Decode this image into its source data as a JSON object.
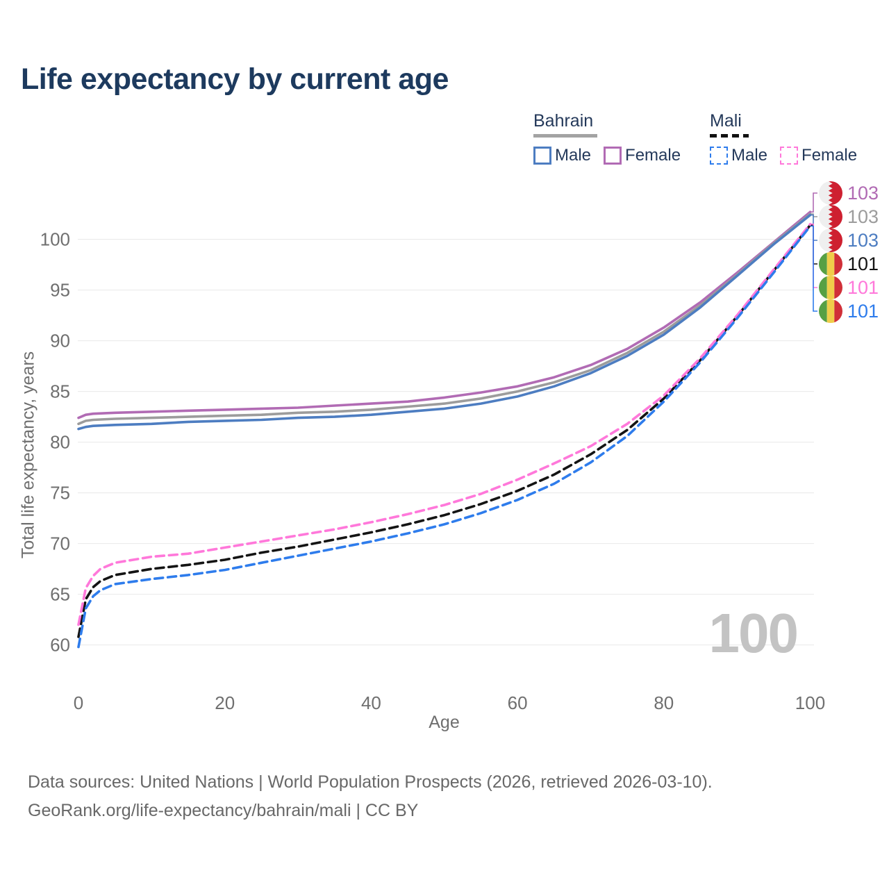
{
  "title": "Life expectancy by current age",
  "watermark_age": "100",
  "legend": {
    "groups": [
      {
        "country": "Bahrain",
        "line_style": "solid",
        "rule_color": "#a3a3a3",
        "items": [
          {
            "label": "Male",
            "color": "#4d7dc1"
          },
          {
            "label": "Female",
            "color": "#b16bb4"
          }
        ]
      },
      {
        "country": "Mali",
        "line_style": "dashed",
        "rule_color": "#111111",
        "items": [
          {
            "label": "Male",
            "color": "#2e7cec"
          },
          {
            "label": "Female",
            "color": "#ff78da"
          }
        ]
      }
    ]
  },
  "footer": {
    "line1": "Data sources: United Nations | World Population Prospects (2026, retrieved 2026-03-10).",
    "line2": "GeoRank.org/life-expectancy/bahrain/mali | CC BY"
  },
  "chart_data": {
    "type": "line",
    "title": "Life expectancy by current age",
    "xlabel": "Age",
    "ylabel": "Total life expectancy, years",
    "xlim": [
      0,
      100
    ],
    "ylim": [
      58,
      104
    ],
    "xticks": [
      0,
      20,
      40,
      60,
      80,
      100
    ],
    "yticks": [
      60,
      65,
      70,
      75,
      80,
      85,
      90,
      95,
      100
    ],
    "grid": "horizontal",
    "grid_color": "#e8e8e8",
    "tick_color": "#6f6f6f",
    "series": [
      {
        "name": "Bahrain Female",
        "country": "Bahrain",
        "sex": "Female",
        "flag": "bahrain",
        "color": "#b16bb4",
        "dashed": false,
        "end_label": "103",
        "points": [
          [
            0,
            82.4
          ],
          [
            1,
            82.7
          ],
          [
            2,
            82.8
          ],
          [
            5,
            82.9
          ],
          [
            10,
            83.0
          ],
          [
            15,
            83.1
          ],
          [
            20,
            83.2
          ],
          [
            25,
            83.3
          ],
          [
            30,
            83.4
          ],
          [
            35,
            83.6
          ],
          [
            40,
            83.8
          ],
          [
            45,
            84.0
          ],
          [
            50,
            84.4
          ],
          [
            55,
            84.9
          ],
          [
            60,
            85.5
          ],
          [
            65,
            86.4
          ],
          [
            70,
            87.6
          ],
          [
            75,
            89.2
          ],
          [
            80,
            91.3
          ],
          [
            85,
            93.8
          ],
          [
            90,
            96.7
          ],
          [
            95,
            99.7
          ],
          [
            100,
            102.7
          ]
        ]
      },
      {
        "name": "Bahrain Both sexes",
        "country": "Bahrain",
        "sex": "Both",
        "flag": "bahrain",
        "color": "#9c9c9c",
        "dashed": false,
        "end_label": "103",
        "points": [
          [
            0,
            81.8
          ],
          [
            1,
            82.1
          ],
          [
            2,
            82.2
          ],
          [
            5,
            82.3
          ],
          [
            10,
            82.4
          ],
          [
            15,
            82.5
          ],
          [
            20,
            82.6
          ],
          [
            25,
            82.7
          ],
          [
            30,
            82.9
          ],
          [
            35,
            83.0
          ],
          [
            40,
            83.2
          ],
          [
            45,
            83.5
          ],
          [
            50,
            83.8
          ],
          [
            55,
            84.3
          ],
          [
            60,
            85.0
          ],
          [
            65,
            85.9
          ],
          [
            70,
            87.1
          ],
          [
            75,
            88.8
          ],
          [
            80,
            90.9
          ],
          [
            85,
            93.5
          ],
          [
            90,
            96.5
          ],
          [
            95,
            99.6
          ],
          [
            100,
            102.5
          ]
        ]
      },
      {
        "name": "Bahrain Male",
        "country": "Bahrain",
        "sex": "Male",
        "flag": "bahrain",
        "color": "#4d7dc1",
        "dashed": false,
        "end_label": "103",
        "points": [
          [
            0,
            81.3
          ],
          [
            1,
            81.5
          ],
          [
            2,
            81.6
          ],
          [
            5,
            81.7
          ],
          [
            10,
            81.8
          ],
          [
            15,
            82.0
          ],
          [
            20,
            82.1
          ],
          [
            25,
            82.2
          ],
          [
            30,
            82.4
          ],
          [
            35,
            82.5
          ],
          [
            40,
            82.7
          ],
          [
            45,
            83.0
          ],
          [
            50,
            83.3
          ],
          [
            55,
            83.8
          ],
          [
            60,
            84.5
          ],
          [
            65,
            85.5
          ],
          [
            70,
            86.8
          ],
          [
            75,
            88.5
          ],
          [
            80,
            90.6
          ],
          [
            85,
            93.3
          ],
          [
            90,
            96.4
          ],
          [
            95,
            99.5
          ],
          [
            100,
            102.4
          ]
        ]
      },
      {
        "name": "Mali Both sexes",
        "country": "Mali",
        "sex": "Both",
        "flag": "mali",
        "color": "#141414",
        "dashed": true,
        "end_label": "101",
        "points": [
          [
            0,
            60.8
          ],
          [
            1,
            64.5
          ],
          [
            2,
            65.7
          ],
          [
            3,
            66.3
          ],
          [
            5,
            66.9
          ],
          [
            10,
            67.5
          ],
          [
            15,
            67.9
          ],
          [
            20,
            68.4
          ],
          [
            25,
            69.1
          ],
          [
            30,
            69.7
          ],
          [
            35,
            70.4
          ],
          [
            40,
            71.1
          ],
          [
            45,
            71.9
          ],
          [
            50,
            72.8
          ],
          [
            55,
            73.9
          ],
          [
            60,
            75.2
          ],
          [
            65,
            76.8
          ],
          [
            70,
            78.8
          ],
          [
            75,
            81.2
          ],
          [
            80,
            84.3
          ],
          [
            85,
            88.1
          ],
          [
            90,
            92.4
          ],
          [
            95,
            96.9
          ],
          [
            100,
            101.4
          ]
        ]
      },
      {
        "name": "Mali Female",
        "country": "Mali",
        "sex": "Female",
        "flag": "mali",
        "color": "#ff78da",
        "dashed": true,
        "end_label": "101",
        "points": [
          [
            0,
            62.0
          ],
          [
            1,
            65.6
          ],
          [
            2,
            66.8
          ],
          [
            3,
            67.5
          ],
          [
            5,
            68.1
          ],
          [
            10,
            68.7
          ],
          [
            15,
            69.0
          ],
          [
            20,
            69.6
          ],
          [
            25,
            70.2
          ],
          [
            30,
            70.8
          ],
          [
            35,
            71.4
          ],
          [
            40,
            72.1
          ],
          [
            45,
            72.9
          ],
          [
            50,
            73.8
          ],
          [
            55,
            74.9
          ],
          [
            60,
            76.3
          ],
          [
            65,
            77.9
          ],
          [
            70,
            79.6
          ],
          [
            75,
            81.8
          ],
          [
            80,
            84.6
          ],
          [
            85,
            88.3
          ],
          [
            90,
            92.5
          ],
          [
            95,
            97.0
          ],
          [
            100,
            101.5
          ]
        ]
      },
      {
        "name": "Mali Male",
        "country": "Mali",
        "sex": "Male",
        "flag": "mali",
        "color": "#2e7cec",
        "dashed": true,
        "end_label": "101",
        "points": [
          [
            0,
            59.8
          ],
          [
            1,
            63.6
          ],
          [
            2,
            64.8
          ],
          [
            3,
            65.4
          ],
          [
            5,
            66.0
          ],
          [
            10,
            66.5
          ],
          [
            15,
            66.9
          ],
          [
            20,
            67.4
          ],
          [
            25,
            68.1
          ],
          [
            30,
            68.8
          ],
          [
            35,
            69.5
          ],
          [
            40,
            70.2
          ],
          [
            45,
            71.0
          ],
          [
            50,
            71.9
          ],
          [
            55,
            73.0
          ],
          [
            60,
            74.3
          ],
          [
            65,
            75.9
          ],
          [
            70,
            78.0
          ],
          [
            75,
            80.6
          ],
          [
            80,
            84.0
          ],
          [
            85,
            87.9
          ],
          [
            90,
            92.2
          ],
          [
            95,
            96.7
          ],
          [
            100,
            101.3
          ]
        ]
      }
    ]
  }
}
